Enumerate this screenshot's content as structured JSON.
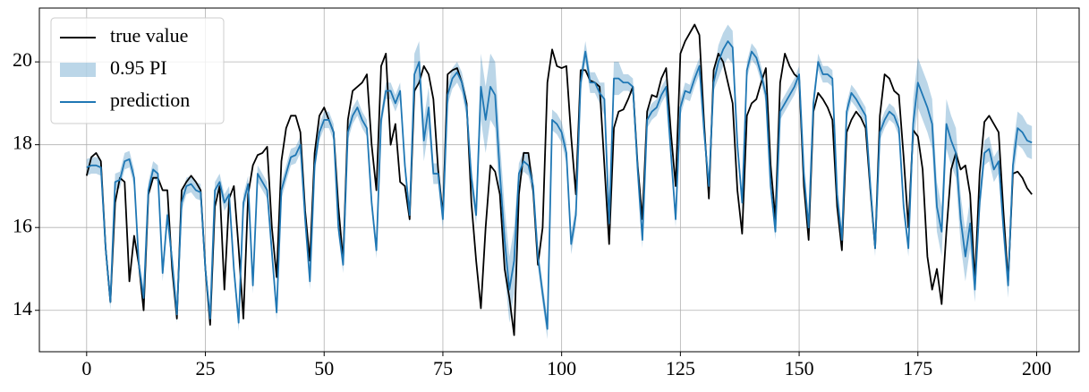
{
  "chart_data": {
    "type": "line",
    "x": [
      0,
      1,
      2,
      3,
      4,
      5,
      6,
      7,
      8,
      9,
      10,
      11,
      12,
      13,
      14,
      15,
      16,
      17,
      18,
      19,
      20,
      21,
      22,
      23,
      24,
      25,
      26,
      27,
      28,
      29,
      30,
      31,
      32,
      33,
      34,
      35,
      36,
      37,
      38,
      39,
      40,
      41,
      42,
      43,
      44,
      45,
      46,
      47,
      48,
      49,
      50,
      51,
      52,
      53,
      54,
      55,
      56,
      57,
      58,
      59,
      60,
      61,
      62,
      63,
      64,
      65,
      66,
      67,
      68,
      69,
      70,
      71,
      72,
      73,
      74,
      75,
      76,
      77,
      78,
      79,
      80,
      81,
      82,
      83,
      84,
      85,
      86,
      87,
      88,
      89,
      90,
      91,
      92,
      93,
      94,
      95,
      96,
      97,
      98,
      99,
      100,
      101,
      102,
      103,
      104,
      105,
      106,
      107,
      108,
      109,
      110,
      111,
      112,
      113,
      114,
      115,
      116,
      117,
      118,
      119,
      120,
      121,
      122,
      123,
      124,
      125,
      126,
      127,
      128,
      129,
      130,
      131,
      132,
      133,
      134,
      135,
      136,
      137,
      138,
      139,
      140,
      141,
      142,
      143,
      144,
      145,
      146,
      147,
      148,
      149,
      150,
      151,
      152,
      153,
      154,
      155,
      156,
      157,
      158,
      159,
      160,
      161,
      162,
      163,
      164,
      165,
      166,
      167,
      168,
      169,
      170,
      171,
      172,
      173,
      174,
      175,
      176,
      177,
      178,
      179,
      180,
      181,
      182,
      183,
      184,
      185,
      186,
      187,
      188,
      189,
      190,
      191,
      192,
      193,
      194,
      195,
      196,
      197,
      198,
      199
    ],
    "series": [
      {
        "name": "true value",
        "color": "#000000",
        "values": [
          17.25,
          17.7,
          17.8,
          17.6,
          15.5,
          14.2,
          16.6,
          17.2,
          17.1,
          14.7,
          15.8,
          15.1,
          14.0,
          16.8,
          17.2,
          17.2,
          16.9,
          16.9,
          15.0,
          13.8,
          16.9,
          17.1,
          17.25,
          17.1,
          16.9,
          15.0,
          13.65,
          16.5,
          17.0,
          14.5,
          16.7,
          17.0,
          15.5,
          13.8,
          16.8,
          17.5,
          17.75,
          17.8,
          17.95,
          16.0,
          14.8,
          17.6,
          18.4,
          18.7,
          18.7,
          18.3,
          16.4,
          15.2,
          17.8,
          18.7,
          18.9,
          18.6,
          18.3,
          16.5,
          15.2,
          18.6,
          19.3,
          19.4,
          19.5,
          19.7,
          18.0,
          16.9,
          19.9,
          20.2,
          18.0,
          18.5,
          17.1,
          17.0,
          16.2,
          19.3,
          19.5,
          19.9,
          19.7,
          19.1,
          17.4,
          16.3,
          19.7,
          19.8,
          19.85,
          19.5,
          19.0,
          16.6,
          15.2,
          14.05,
          16.0,
          17.5,
          17.35,
          16.8,
          15.0,
          14.3,
          13.4,
          16.8,
          17.8,
          17.8,
          16.9,
          15.1,
          16.0,
          19.5,
          20.3,
          19.9,
          19.85,
          19.9,
          18.2,
          16.8,
          19.8,
          19.8,
          19.55,
          19.5,
          19.4,
          17.5,
          15.6,
          18.4,
          18.8,
          18.85,
          19.1,
          19.4,
          17.5,
          16.2,
          18.8,
          19.2,
          19.15,
          19.6,
          19.85,
          18.3,
          17.0,
          20.2,
          20.5,
          20.7,
          20.9,
          20.65,
          18.5,
          16.7,
          19.8,
          20.2,
          20.0,
          19.5,
          19.0,
          16.9,
          15.85,
          18.7,
          19.0,
          19.1,
          19.5,
          19.85,
          17.5,
          16.2,
          19.5,
          20.2,
          19.9,
          19.7,
          19.6,
          17.0,
          15.7,
          18.8,
          19.25,
          19.1,
          18.9,
          18.6,
          16.5,
          15.45,
          18.3,
          18.6,
          18.8,
          18.65,
          18.4,
          16.9,
          15.5,
          18.7,
          19.7,
          19.6,
          19.3,
          19.2,
          17.7,
          16.0,
          18.35,
          18.2,
          17.4,
          15.3,
          14.5,
          15.0,
          14.15,
          15.9,
          17.4,
          17.8,
          17.4,
          17.5,
          16.8,
          14.7,
          17.3,
          18.55,
          18.7,
          18.5,
          18.3,
          16.4,
          14.7,
          17.3,
          17.35,
          17.2,
          16.95,
          16.8
        ]
      },
      {
        "name": "prediction",
        "color": "#1f77b4",
        "values": [
          17.45,
          17.5,
          17.5,
          17.45,
          15.5,
          14.2,
          17.1,
          17.15,
          17.6,
          17.65,
          17.2,
          15.1,
          14.3,
          16.9,
          17.4,
          17.3,
          14.9,
          16.3,
          15.2,
          13.9,
          16.6,
          17.0,
          17.05,
          16.9,
          16.85,
          15.0,
          13.8,
          16.9,
          17.1,
          16.6,
          16.8,
          15.0,
          13.7,
          16.6,
          17.05,
          14.6,
          17.3,
          17.1,
          16.9,
          15.4,
          13.95,
          16.9,
          17.3,
          17.7,
          17.75,
          18.0,
          16.2,
          14.7,
          17.5,
          18.3,
          18.6,
          18.6,
          18.3,
          16.0,
          15.1,
          18.3,
          18.7,
          18.9,
          18.6,
          18.4,
          16.6,
          15.45,
          18.6,
          19.3,
          19.3,
          19.0,
          19.3,
          17.5,
          16.3,
          19.7,
          20.0,
          18.1,
          18.9,
          17.3,
          17.3,
          16.2,
          19.2,
          19.6,
          19.75,
          19.5,
          18.9,
          17.2,
          16.3,
          19.4,
          18.6,
          19.4,
          19.2,
          17.3,
          15.7,
          14.5,
          15.2,
          17.3,
          17.6,
          17.5,
          17.0,
          15.3,
          14.4,
          13.55,
          18.6,
          18.5,
          18.3,
          17.8,
          15.6,
          16.3,
          19.5,
          20.25,
          19.5,
          19.5,
          19.25,
          19.1,
          16.1,
          19.6,
          19.6,
          19.5,
          19.5,
          19.4,
          17.4,
          15.7,
          18.6,
          18.8,
          18.9,
          19.2,
          19.4,
          17.8,
          16.2,
          18.9,
          19.3,
          19.25,
          19.6,
          19.9,
          18.3,
          17.0,
          19.5,
          20.0,
          20.3,
          20.5,
          20.35,
          18.0,
          16.6,
          19.8,
          20.25,
          20.1,
          19.7,
          19.2,
          17.0,
          15.9,
          18.8,
          19.0,
          19.2,
          19.4,
          19.7,
          17.3,
          16.0,
          19.0,
          20.0,
          19.7,
          19.7,
          19.6,
          16.8,
          15.7,
          18.8,
          19.25,
          19.1,
          18.9,
          18.7,
          17.0,
          15.5,
          18.3,
          18.6,
          18.8,
          18.7,
          18.4,
          16.5,
          15.5,
          18.5,
          19.5,
          19.2,
          18.9,
          18.5,
          16.5,
          15.9,
          18.5,
          18.1,
          17.8,
          16.2,
          15.3,
          16.1,
          14.5,
          16.6,
          17.8,
          17.9,
          17.4,
          17.6,
          16.0,
          14.6,
          17.5,
          18.4,
          18.3,
          18.1,
          18.05
        ]
      }
    ],
    "interval": {
      "name": "0.95 PI",
      "color": "#1f77b4",
      "opacity": 0.3,
      "lower": [
        17.25,
        17.3,
        17.3,
        17.25,
        15.3,
        14.0,
        16.9,
        16.95,
        17.4,
        17.45,
        17.0,
        14.9,
        14.1,
        16.7,
        17.2,
        17.1,
        14.7,
        16.1,
        15.0,
        13.7,
        16.4,
        16.8,
        16.85,
        16.7,
        16.65,
        14.8,
        13.6,
        16.7,
        16.9,
        16.4,
        16.6,
        14.8,
        13.5,
        16.4,
        16.85,
        14.4,
        17.1,
        16.9,
        16.7,
        15.2,
        13.75,
        16.7,
        17.1,
        17.5,
        17.55,
        17.8,
        16.0,
        14.5,
        17.3,
        18.1,
        18.4,
        18.4,
        18.1,
        15.8,
        14.9,
        18.1,
        18.5,
        18.7,
        18.4,
        18.2,
        16.4,
        15.25,
        18.4,
        19.1,
        19.1,
        18.8,
        19.1,
        17.3,
        16.1,
        19.2,
        19.5,
        17.6,
        18.4,
        17.05,
        17.05,
        15.95,
        18.95,
        19.35,
        19.5,
        19.25,
        18.65,
        16.95,
        16.05,
        18.6,
        17.8,
        18.6,
        18.4,
        16.5,
        14.9,
        13.7,
        14.4,
        17.05,
        17.35,
        17.25,
        16.75,
        15.05,
        14.15,
        13.3,
        18.35,
        18.25,
        18.05,
        17.55,
        15.35,
        16.05,
        19.25,
        20.0,
        19.25,
        19.25,
        19.0,
        18.7,
        15.7,
        19.2,
        19.2,
        19.3,
        19.3,
        19.2,
        17.2,
        15.5,
        18.4,
        18.6,
        18.7,
        19.0,
        19.2,
        17.6,
        16.0,
        18.7,
        19.1,
        19.05,
        19.4,
        19.7,
        18.1,
        16.8,
        19.3,
        19.6,
        19.9,
        20.1,
        19.95,
        17.8,
        16.4,
        19.6,
        20.05,
        19.9,
        19.5,
        19.0,
        16.8,
        15.7,
        18.6,
        18.8,
        19.0,
        19.2,
        19.5,
        17.1,
        15.8,
        18.8,
        19.8,
        19.5,
        19.5,
        19.4,
        16.6,
        15.5,
        18.6,
        19.05,
        18.9,
        18.7,
        18.5,
        16.8,
        15.3,
        18.1,
        18.4,
        18.6,
        18.5,
        18.2,
        16.3,
        15.3,
        17.9,
        18.9,
        18.6,
        18.3,
        17.9,
        15.9,
        15.3,
        17.9,
        17.5,
        17.2,
        15.6,
        14.7,
        15.5,
        14.2,
        16.3,
        17.5,
        17.6,
        17.1,
        17.3,
        15.7,
        14.3,
        17.1,
        18.0,
        17.9,
        17.7,
        17.65
      ],
      "upper": [
        17.65,
        17.7,
        17.7,
        17.65,
        15.7,
        14.4,
        17.3,
        17.35,
        17.8,
        17.85,
        17.4,
        15.3,
        14.5,
        17.1,
        17.6,
        17.5,
        15.1,
        16.5,
        15.4,
        14.1,
        16.8,
        17.2,
        17.25,
        17.1,
        17.05,
        15.2,
        14.0,
        17.1,
        17.3,
        16.8,
        17.0,
        15.2,
        13.9,
        16.8,
        17.25,
        14.8,
        17.5,
        17.3,
        17.1,
        15.6,
        14.15,
        17.1,
        17.5,
        17.9,
        17.95,
        18.2,
        16.4,
        14.9,
        17.7,
        18.5,
        18.8,
        18.8,
        18.5,
        16.2,
        15.3,
        18.5,
        18.9,
        19.1,
        18.8,
        18.6,
        16.8,
        15.65,
        18.8,
        19.5,
        19.5,
        19.2,
        19.5,
        17.7,
        16.5,
        20.2,
        20.5,
        18.6,
        19.4,
        17.55,
        17.55,
        16.45,
        19.45,
        19.85,
        20.0,
        19.75,
        19.15,
        17.45,
        16.55,
        20.2,
        19.4,
        20.2,
        20.0,
        18.1,
        16.5,
        15.3,
        16.0,
        17.55,
        17.85,
        17.75,
        17.25,
        15.55,
        14.65,
        13.8,
        18.85,
        18.75,
        18.55,
        18.05,
        15.85,
        16.55,
        19.75,
        20.5,
        19.75,
        19.75,
        19.5,
        19.5,
        16.5,
        20.0,
        20.0,
        19.7,
        19.7,
        19.6,
        17.6,
        15.9,
        18.8,
        19.0,
        19.1,
        19.4,
        19.6,
        18.0,
        16.4,
        19.1,
        19.5,
        19.45,
        19.8,
        20.1,
        18.5,
        17.2,
        19.7,
        20.4,
        20.7,
        20.9,
        20.75,
        18.2,
        16.8,
        20.0,
        20.45,
        20.3,
        19.9,
        19.4,
        17.2,
        16.1,
        19.0,
        19.2,
        19.4,
        19.6,
        19.9,
        17.5,
        16.2,
        19.2,
        20.2,
        19.9,
        19.9,
        19.8,
        17.0,
        15.9,
        19.0,
        19.45,
        19.3,
        19.1,
        18.9,
        17.2,
        15.7,
        18.5,
        18.8,
        19.0,
        18.9,
        18.6,
        16.7,
        15.7,
        19.1,
        20.1,
        19.8,
        19.5,
        19.1,
        17.1,
        16.5,
        19.1,
        18.7,
        18.4,
        16.8,
        15.9,
        16.7,
        14.8,
        16.9,
        18.1,
        18.2,
        17.7,
        17.9,
        16.3,
        14.9,
        17.9,
        18.8,
        18.7,
        18.5,
        18.45
      ]
    },
    "xlim": [
      -9.95,
      208.95
    ],
    "ylim": [
      13.0,
      21.3
    ],
    "xticks": [
      0,
      25,
      50,
      75,
      100,
      125,
      150,
      175,
      200
    ],
    "yticks": [
      14,
      16,
      18,
      20
    ],
    "grid": true,
    "legend": "upper left"
  }
}
